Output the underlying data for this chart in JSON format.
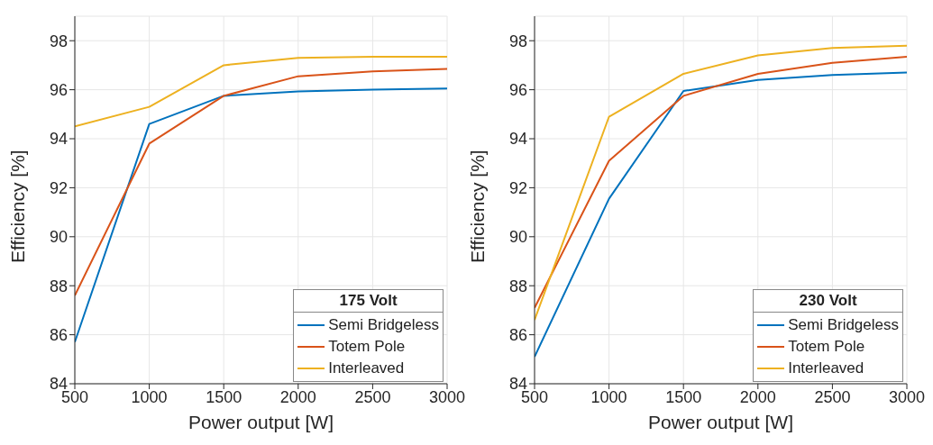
{
  "chart_data": [
    {
      "type": "line",
      "legend_title": "175 Volt",
      "xlabel": "Power output [W]",
      "ylabel": "Efficiency [%]",
      "x": [
        500,
        1000,
        1500,
        2000,
        2500,
        3000
      ],
      "xlim": [
        500,
        3000
      ],
      "xticks": [
        500,
        1000,
        1500,
        2000,
        2500,
        3000
      ],
      "ylim": [
        84,
        99
      ],
      "yticks": [
        84,
        86,
        88,
        90,
        92,
        94,
        96,
        98
      ],
      "grid": true,
      "legend": "bottom right",
      "series": [
        {
          "name": "Semi Bridgeless",
          "color": "#0072bd",
          "values": [
            85.7,
            94.6,
            95.75,
            95.93,
            96.0,
            96.05
          ]
        },
        {
          "name": "Totem Pole",
          "color": "#d95319",
          "values": [
            87.6,
            93.8,
            95.75,
            96.55,
            96.75,
            96.85
          ]
        },
        {
          "name": "Interleaved",
          "color": "#edb120",
          "values": [
            94.5,
            95.3,
            97.0,
            97.3,
            97.35,
            97.35
          ]
        }
      ]
    },
    {
      "type": "line",
      "legend_title": "230 Volt",
      "xlabel": "Power output [W]",
      "ylabel": "Efficiency [%]",
      "x": [
        500,
        1000,
        1500,
        2000,
        2500,
        3000
      ],
      "xlim": [
        500,
        3000
      ],
      "xticks": [
        500,
        1000,
        1500,
        2000,
        2500,
        3000
      ],
      "ylim": [
        84,
        99
      ],
      "yticks": [
        84,
        86,
        88,
        90,
        92,
        94,
        96,
        98
      ],
      "grid": true,
      "legend": "bottom right",
      "series": [
        {
          "name": "Semi Bridgeless",
          "color": "#0072bd",
          "values": [
            85.1,
            91.55,
            95.95,
            96.4,
            96.6,
            96.7
          ]
        },
        {
          "name": "Totem Pole",
          "color": "#d95319",
          "values": [
            87.1,
            93.1,
            95.75,
            96.65,
            97.1,
            97.35
          ]
        },
        {
          "name": "Interleaved",
          "color": "#edb120",
          "values": [
            86.6,
            94.9,
            96.65,
            97.4,
            97.7,
            97.8
          ]
        }
      ]
    }
  ]
}
